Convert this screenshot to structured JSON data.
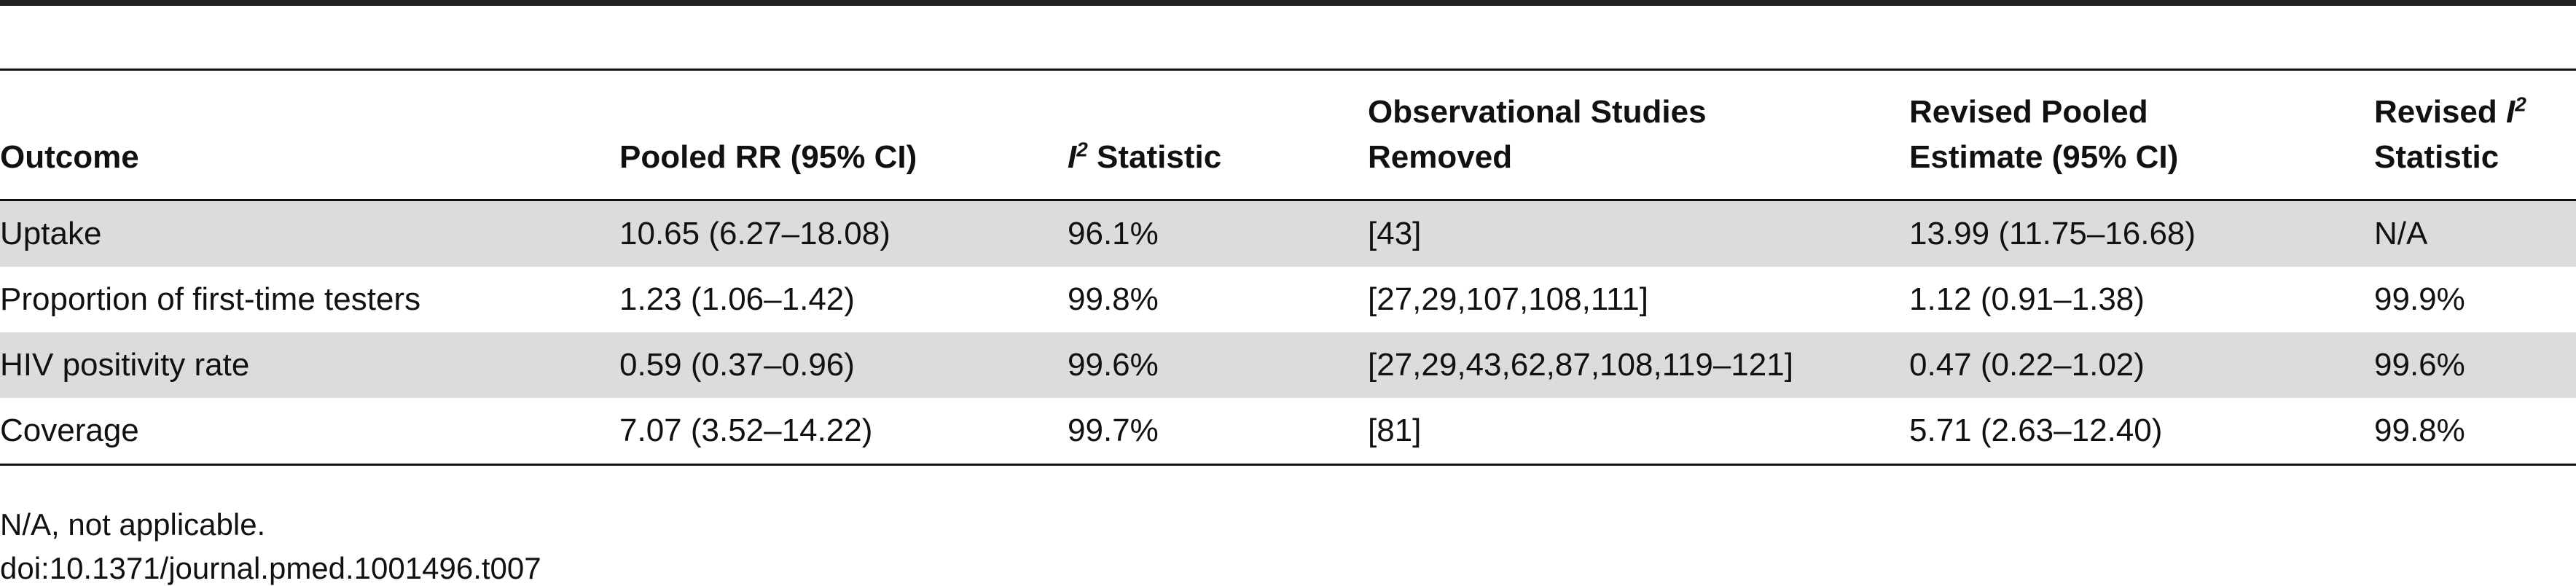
{
  "table": {
    "headers": [
      {
        "lines": [
          "Outcome"
        ]
      },
      {
        "lines": [
          "Pooled RR (95% CI)"
        ]
      },
      {
        "pre": "",
        "symbol": "I",
        "sup": "2",
        "post": " Statistic"
      },
      {
        "lines": [
          "Observational Studies",
          "Removed"
        ]
      },
      {
        "lines": [
          "Revised Pooled",
          "Estimate (95% CI)"
        ]
      },
      {
        "pre": "Revised ",
        "symbol": "I",
        "sup": "2",
        "post": "Statistic"
      }
    ],
    "rows": [
      {
        "outcome": "Uptake",
        "pooled_rr": "10.65 (6.27–18.08)",
        "i2": "96.1%",
        "removed": "[43]",
        "revised_estimate": "13.99 (11.75–16.68)",
        "revised_i2": "N/A",
        "shaded": true
      },
      {
        "outcome": "Proportion of first-time testers",
        "pooled_rr": "1.23 (1.06–1.42)",
        "i2": "99.8%",
        "removed": "[27,29,107,108,111]",
        "revised_estimate": "1.12 (0.91–1.38)",
        "revised_i2": "99.9%",
        "shaded": false
      },
      {
        "outcome": "HIV positivity rate",
        "pooled_rr": "0.59 (0.37–0.96)",
        "i2": "99.6%",
        "removed": "[27,29,43,62,87,108,119–121]",
        "revised_estimate": "0.47 (0.22–1.02)",
        "revised_i2": "99.6%",
        "shaded": true
      },
      {
        "outcome": "Coverage",
        "pooled_rr": "7.07 (3.52–14.22)",
        "i2": "99.7%",
        "removed": "[81]",
        "revised_estimate": "5.71 (2.63–12.40)",
        "revised_i2": "99.8%",
        "shaded": false
      }
    ]
  },
  "footnotes": {
    "abbreviation": "N/A, not applicable.",
    "doi": "doi:10.1371/journal.pmed.1001496.t007"
  },
  "colors": {
    "shaded_row": "#dcdcde",
    "rule": "#111111"
  }
}
